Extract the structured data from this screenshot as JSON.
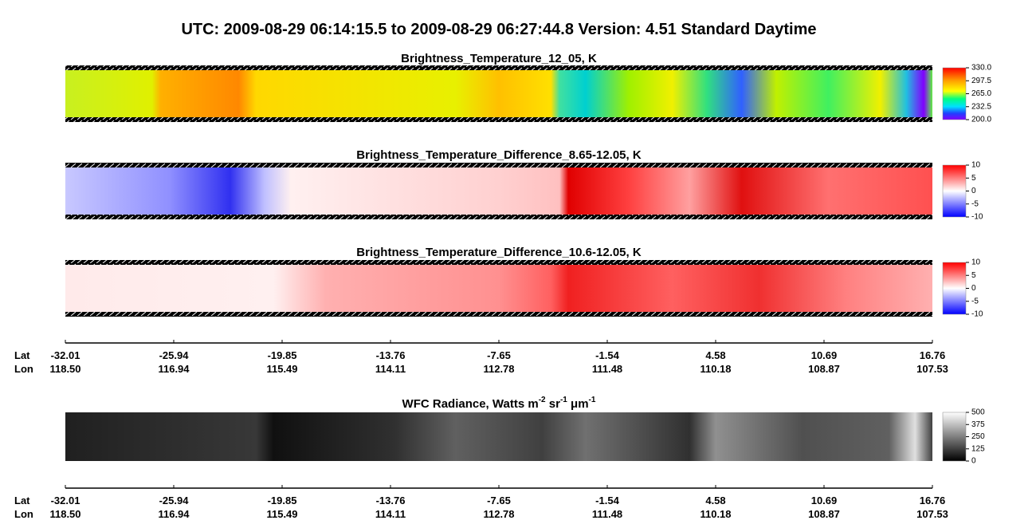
{
  "title": "UTC:  2009-08-29   06:14:15.5  to  2009-08-29   06:27:44.8    Version: 4.51  Standard Daytime",
  "panels": [
    {
      "title": "Brightness_Temperature_12_05, K",
      "colorbar_ticks": [
        "330.0",
        "297.5",
        "265.0",
        "232.5",
        "200.0"
      ]
    },
    {
      "title": "Brightness_Temperature_Difference_8.65-12.05, K",
      "colorbar_ticks": [
        "10",
        "5",
        "0",
        "-5",
        "-10"
      ]
    },
    {
      "title": "Brightness_Temperature_Difference_10.6-12.05, K",
      "colorbar_ticks": [
        "10",
        "5",
        "0",
        "-5",
        "-10"
      ]
    },
    {
      "title_parts": [
        "WFC Radiance, Watts m",
        "-2",
        " sr",
        "-1",
        " μm",
        "-1"
      ],
      "colorbar_ticks": [
        "500",
        "375",
        "250",
        "125",
        "0"
      ]
    }
  ],
  "axes": [
    {
      "row_labels": [
        "Lat",
        "Lon"
      ],
      "lat": [
        "-32.01",
        "-25.94",
        "-19.85",
        "-13.76",
        "-7.65",
        "-1.54",
        "4.58",
        "10.69",
        "16.76"
      ],
      "lon": [
        "118.50",
        "116.94",
        "115.49",
        "114.11",
        "112.78",
        "111.48",
        "110.18",
        "108.87",
        "107.53"
      ]
    },
    {
      "row_labels": [
        "Lat",
        "Lon"
      ],
      "lat": [
        "-32.01",
        "-25.94",
        "-19.85",
        "-13.76",
        "-7.65",
        "-1.54",
        "4.58",
        "10.69",
        "16.76"
      ],
      "lon": [
        "118.50",
        "116.94",
        "115.49",
        "114.11",
        "112.78",
        "111.48",
        "110.18",
        "108.87",
        "107.53"
      ]
    }
  ]
}
